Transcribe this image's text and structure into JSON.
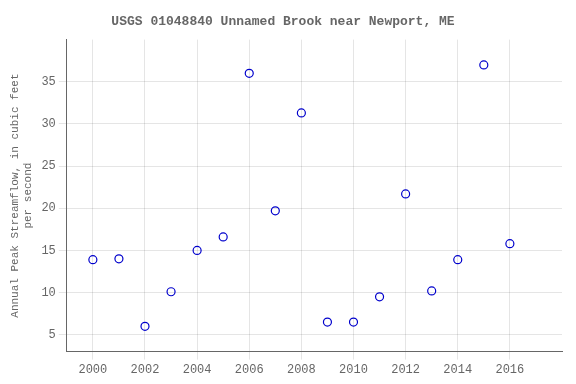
{
  "chart_data": {
    "type": "scatter",
    "title": "USGS 01048840 Unnamed Brook near Newport, ME",
    "ylabel": [
      "Annual Peak Streamflow, in cubic feet",
      "per second"
    ],
    "x": [
      2000,
      2001,
      2002,
      2003,
      2004,
      2005,
      2006,
      2007,
      2008,
      2009,
      2010,
      2011,
      2012,
      2013,
      2014,
      2015,
      2016
    ],
    "values": [
      13.9,
      14.0,
      6.0,
      10.1,
      15.0,
      16.6,
      36.0,
      19.7,
      31.3,
      6.5,
      6.5,
      9.5,
      21.7,
      10.2,
      13.9,
      37.0,
      15.8
    ],
    "color": "#0000CC",
    "marker": "circle-open",
    "xlim": [
      1999,
      2018
    ],
    "ylim": [
      3,
      40
    ],
    "xticks": [
      2000,
      2002,
      2004,
      2006,
      2008,
      2010,
      2012,
      2014,
      2016
    ],
    "yticks": [
      5,
      10,
      15,
      20,
      25,
      30,
      35
    ],
    "grid": true
  }
}
